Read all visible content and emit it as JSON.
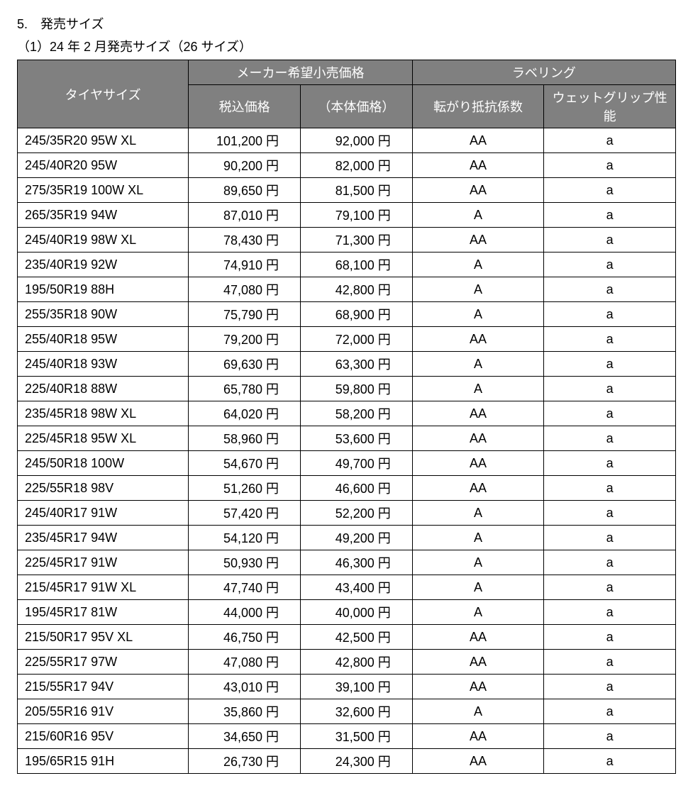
{
  "heading": {
    "section": "5.　発売サイズ",
    "subsection": "（1）24 年 2 月発売サイズ（26 サイズ）"
  },
  "table": {
    "headers": {
      "size": "タイヤサイズ",
      "price_group": "メーカー希望小売価格",
      "label_group": "ラベリング",
      "tax_price": "税込価格",
      "body_price": "（本体価格）",
      "rolling": "転がり抵抗係数",
      "wet": "ウェットグリップ性能"
    },
    "rows": [
      {
        "size": "245/35R20 95W XL",
        "tax": "101,200 円",
        "body": "92,000 円",
        "rolling": "AA",
        "wet": "a"
      },
      {
        "size": "245/40R20 95W",
        "tax": "90,200 円",
        "body": "82,000 円",
        "rolling": "AA",
        "wet": "a"
      },
      {
        "size": "275/35R19 100W XL",
        "tax": "89,650 円",
        "body": "81,500 円",
        "rolling": "AA",
        "wet": "a"
      },
      {
        "size": "265/35R19 94W",
        "tax": "87,010 円",
        "body": "79,100 円",
        "rolling": "A",
        "wet": "a"
      },
      {
        "size": "245/40R19 98W XL",
        "tax": "78,430 円",
        "body": "71,300 円",
        "rolling": "AA",
        "wet": "a"
      },
      {
        "size": "235/40R19 92W",
        "tax": "74,910 円",
        "body": "68,100 円",
        "rolling": "A",
        "wet": "a"
      },
      {
        "size": "195/50R19 88H",
        "tax": "47,080 円",
        "body": "42,800 円",
        "rolling": "A",
        "wet": "a"
      },
      {
        "size": "255/35R18 90W",
        "tax": "75,790 円",
        "body": "68,900 円",
        "rolling": "A",
        "wet": "a"
      },
      {
        "size": "255/40R18 95W",
        "tax": "79,200 円",
        "body": "72,000 円",
        "rolling": "AA",
        "wet": "a"
      },
      {
        "size": "245/40R18 93W",
        "tax": "69,630 円",
        "body": "63,300 円",
        "rolling": "A",
        "wet": "a"
      },
      {
        "size": "225/40R18 88W",
        "tax": "65,780 円",
        "body": "59,800 円",
        "rolling": "A",
        "wet": "a"
      },
      {
        "size": "235/45R18 98W XL",
        "tax": "64,020 円",
        "body": "58,200 円",
        "rolling": "AA",
        "wet": "a"
      },
      {
        "size": "225/45R18 95W XL",
        "tax": "58,960 円",
        "body": "53,600 円",
        "rolling": "AA",
        "wet": "a"
      },
      {
        "size": "245/50R18 100W",
        "tax": "54,670 円",
        "body": "49,700 円",
        "rolling": "AA",
        "wet": "a"
      },
      {
        "size": "225/55R18 98V",
        "tax": "51,260 円",
        "body": "46,600 円",
        "rolling": "AA",
        "wet": "a"
      },
      {
        "size": "245/40R17 91W",
        "tax": "57,420 円",
        "body": "52,200 円",
        "rolling": "A",
        "wet": "a"
      },
      {
        "size": "235/45R17 94W",
        "tax": "54,120 円",
        "body": "49,200 円",
        "rolling": "A",
        "wet": "a"
      },
      {
        "size": "225/45R17 91W",
        "tax": "50,930 円",
        "body": "46,300 円",
        "rolling": "A",
        "wet": "a"
      },
      {
        "size": "215/45R17 91W XL",
        "tax": "47,740 円",
        "body": "43,400 円",
        "rolling": "A",
        "wet": "a"
      },
      {
        "size": "195/45R17 81W",
        "tax": "44,000 円",
        "body": "40,000 円",
        "rolling": "A",
        "wet": "a"
      },
      {
        "size": "215/50R17 95V XL",
        "tax": "46,750 円",
        "body": "42,500 円",
        "rolling": "AA",
        "wet": "a"
      },
      {
        "size": "225/55R17 97W",
        "tax": "47,080 円",
        "body": "42,800 円",
        "rolling": "AA",
        "wet": "a"
      },
      {
        "size": "215/55R17 94V",
        "tax": "43,010 円",
        "body": "39,100 円",
        "rolling": "AA",
        "wet": "a"
      },
      {
        "size": "205/55R16 91V",
        "tax": "35,860 円",
        "body": "32,600 円",
        "rolling": "A",
        "wet": "a"
      },
      {
        "size": "215/60R16 95V",
        "tax": "34,650 円",
        "body": "31,500 円",
        "rolling": "AA",
        "wet": "a"
      },
      {
        "size": "195/65R15 91H",
        "tax": "26,730 円",
        "body": "24,300 円",
        "rolling": "AA",
        "wet": "a"
      }
    ]
  }
}
